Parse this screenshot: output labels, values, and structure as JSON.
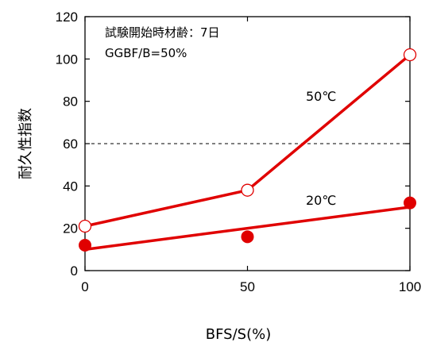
{
  "chart_data": {
    "type": "line",
    "title": "",
    "xlabel": "BFS/S(%)",
    "ylabel": "耐久性指数",
    "xlim": [
      0,
      100
    ],
    "ylim": [
      0,
      120
    ],
    "x_ticks": [
      0,
      50,
      100
    ],
    "y_ticks": [
      0,
      20,
      40,
      60,
      80,
      100,
      120
    ],
    "grid": false,
    "reference_line": {
      "y": 60,
      "style": "dashed"
    },
    "annotations": [
      "試験開始時材齢：7日",
      "GGBF/B=50%"
    ],
    "series": [
      {
        "name": "50℃",
        "marker": "open-circle",
        "color": "#e00000",
        "points": [
          {
            "x": 0,
            "y": 21
          },
          {
            "x": 50,
            "y": 38
          },
          {
            "x": 100,
            "y": 102
          }
        ],
        "fit_line": [
          {
            "x": 0,
            "y": 21
          },
          {
            "x": 50,
            "y": 38
          },
          {
            "x": 100,
            "y": 102
          }
        ]
      },
      {
        "name": "20℃",
        "marker": "filled-circle",
        "color": "#e00000",
        "points": [
          {
            "x": 0,
            "y": 12
          },
          {
            "x": 50,
            "y": 16
          },
          {
            "x": 100,
            "y": 32
          }
        ],
        "fit_line": [
          {
            "x": 0,
            "y": 10
          },
          {
            "x": 100,
            "y": 30
          }
        ]
      }
    ]
  }
}
